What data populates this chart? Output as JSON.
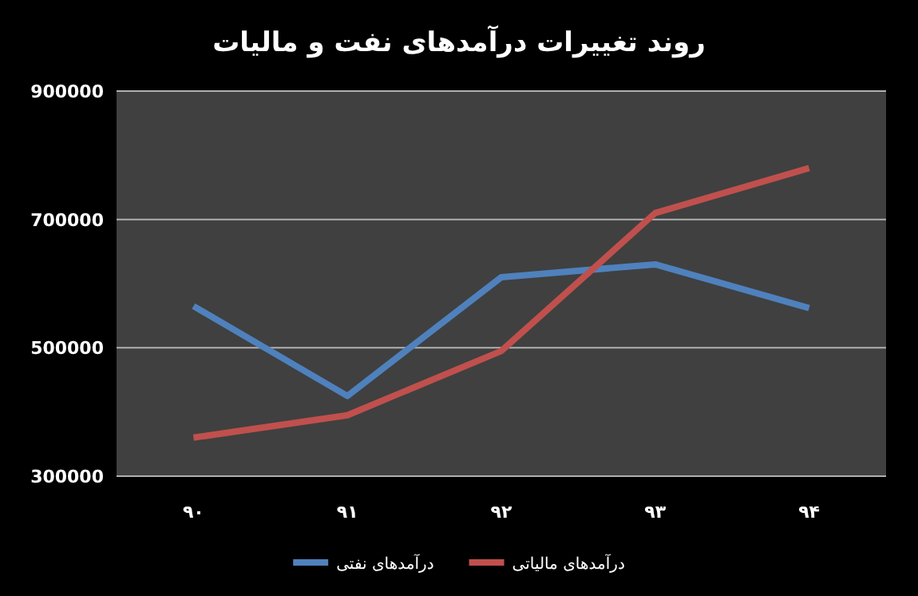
{
  "chart_data": {
    "type": "line",
    "title": "روند تغییرات درآمدهای نفت و مالیات",
    "categories": [
      "۹۰",
      "۹۱",
      "۹۲",
      "۹۳",
      "۹۴"
    ],
    "series": [
      {
        "name": "درآمدهای نفتی",
        "color": "#4f81bd",
        "values": [
          565000,
          425000,
          610000,
          630000,
          562000
        ]
      },
      {
        "name": "درآمدهای مالیاتی",
        "color": "#c0504d",
        "values": [
          360000,
          395000,
          495000,
          710000,
          780000
        ]
      }
    ],
    "ylim": [
      300000,
      900000
    ],
    "yticks": [
      300000,
      500000,
      700000,
      900000
    ],
    "grid": "y",
    "legend": "bottom",
    "marker": "none",
    "line_style": "solid"
  }
}
